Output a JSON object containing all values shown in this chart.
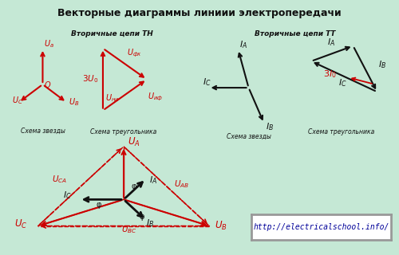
{
  "title": "Векторные диаграммы линиии электропередачи",
  "bg_color": "#c5e8d5",
  "red": "#cc0000",
  "black": "#111111",
  "subtitle_TN": "Вторичные цепи ТН",
  "subtitle_TT": "Вторичные цепи ТТ",
  "label_star1": "Схема звезды",
  "label_tri1": "Схема треугольника",
  "label_star2": "Схема звезды",
  "label_tri2": "Схема треугольника",
  "url": "http://electricalschool.info/"
}
